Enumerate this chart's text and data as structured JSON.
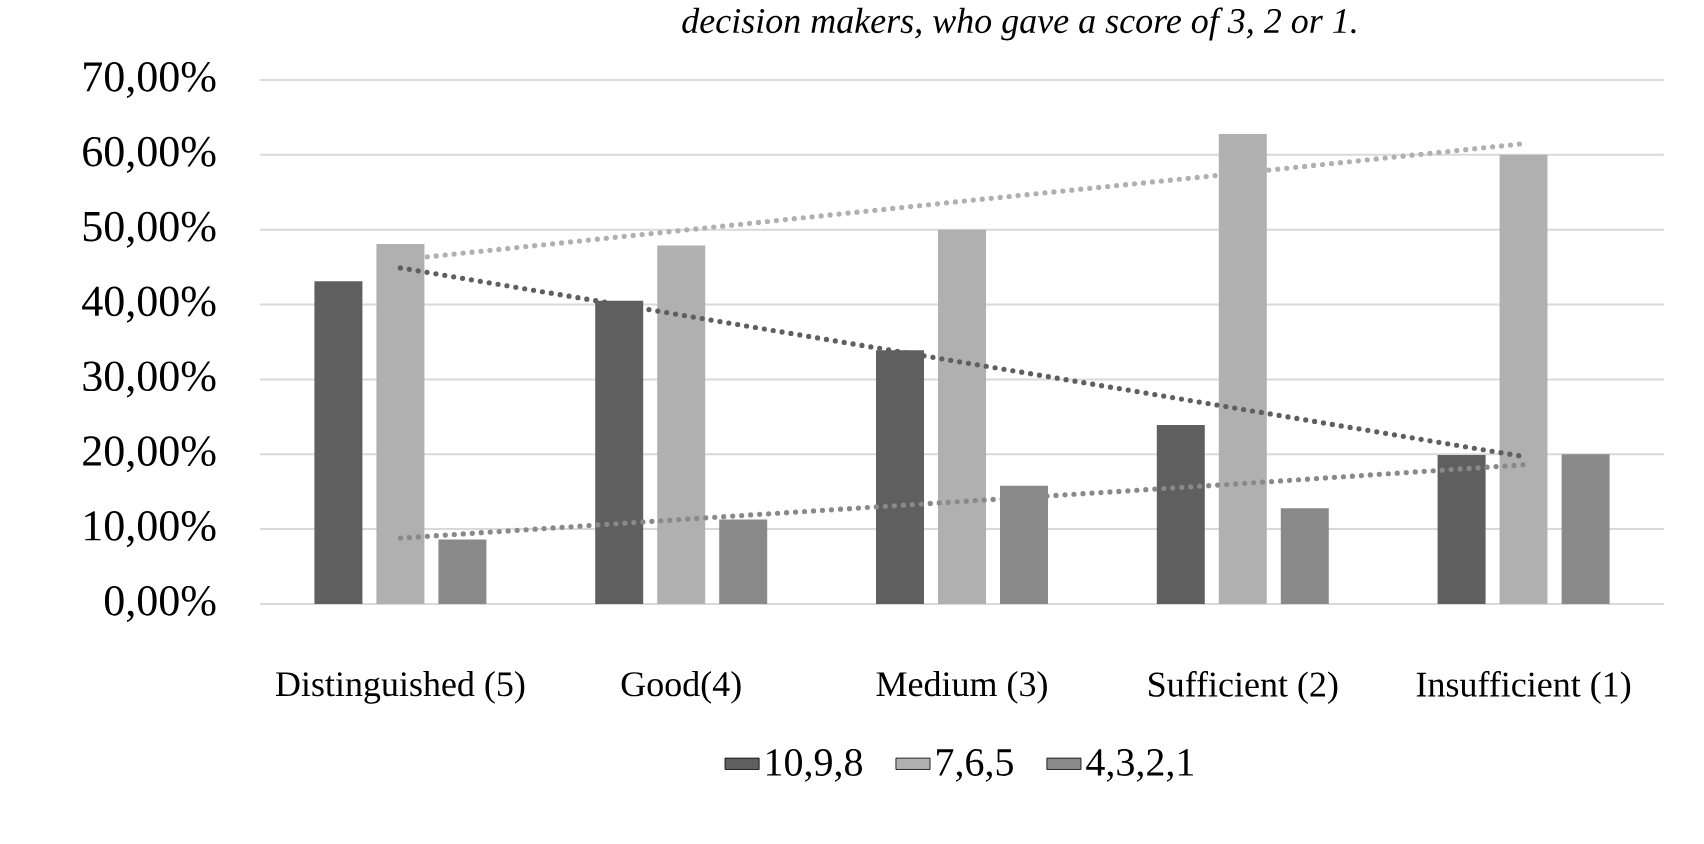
{
  "chart_data": {
    "type": "bar",
    "title": "decision makers, who gave a score of 3, 2 or 1.",
    "categories": [
      "Distinguished (5)",
      "Good(4)",
      "Medium (3)",
      "Sufficient (2)",
      "Insufficient (1)"
    ],
    "series": [
      {
        "name": "10,9,8",
        "color": "#5f5f5f",
        "values": [
          43.1,
          40.5,
          33.9,
          23.9,
          19.9
        ]
      },
      {
        "name": "7,6,5",
        "color": "#b0b0b0",
        "values": [
          48.1,
          47.9,
          50.0,
          62.8,
          60.0
        ]
      },
      {
        "name": "4,3,2,1",
        "color": "#898989",
        "values": [
          8.6,
          11.3,
          15.8,
          12.8,
          20.0
        ]
      },
      {
        "type": "line",
        "color": "#5f5f5f",
        "line_style": "dotted",
        "marker": "none",
        "values": [
          44.9,
          38.6,
          32.3,
          26.0,
          19.7
        ]
      },
      {
        "type": "line",
        "color": "#b0b0b0",
        "line_style": "dotted",
        "marker": "none",
        "values": [
          46.0,
          49.9,
          53.8,
          57.6,
          61.5
        ]
      },
      {
        "type": "line",
        "color": "#898989",
        "line_style": "dotted",
        "marker": "none",
        "values": [
          8.8,
          11.3,
          13.7,
          16.1,
          18.6
        ]
      }
    ],
    "ylim": [
      0,
      70
    ],
    "yticks": [
      {
        "value": 0,
        "label": "0,00%"
      },
      {
        "value": 10,
        "label": "10,00%"
      },
      {
        "value": 20,
        "label": "20,00%"
      },
      {
        "value": 30,
        "label": "30,00%"
      },
      {
        "value": 40,
        "label": "40,00%"
      },
      {
        "value": 50,
        "label": "50,00%"
      },
      {
        "value": 60,
        "label": "60,00%"
      },
      {
        "value": 70,
        "label": "70,00%"
      }
    ],
    "grid": "y",
    "legend": "bottom"
  }
}
